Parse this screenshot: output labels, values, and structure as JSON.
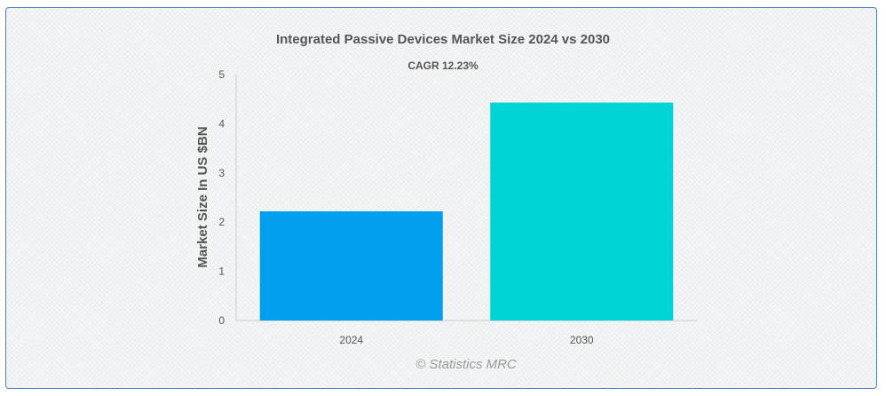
{
  "chart_data": {
    "type": "bar",
    "title": "Integrated Passive Devices Market Size 2024 vs 2030",
    "subtitle": "CAGR 12.23%",
    "ylabel": "Market Size In US $BN",
    "xlabel": "",
    "categories": [
      "2024",
      "2030"
    ],
    "values": [
      2.22,
      4.43
    ],
    "colors": [
      "#039fef",
      "#00d4d4"
    ],
    "ylim": [
      0,
      5
    ],
    "yticks": [
      "0",
      "1",
      "2",
      "3",
      "4",
      "5"
    ],
    "grid": false,
    "legend": "none"
  },
  "credit": "© Statistics MRC"
}
